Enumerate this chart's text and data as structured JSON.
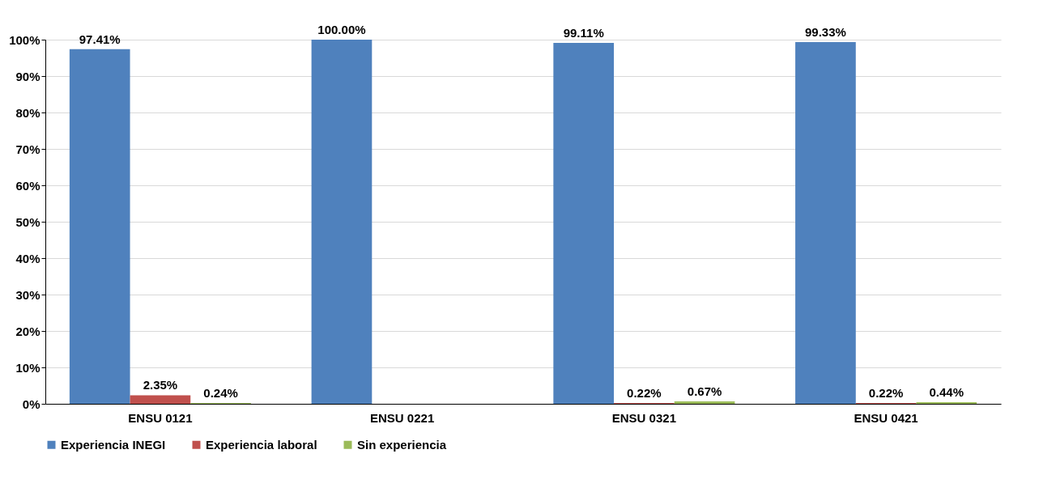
{
  "chart_data": {
    "type": "bar",
    "categories": [
      "ENSU 0121",
      "ENSU 0221",
      "ENSU 0321",
      "ENSU 0421"
    ],
    "series": [
      {
        "name": "Experiencia INEGI",
        "color": "#4f81bd",
        "values": [
          97.41,
          100.0,
          99.11,
          99.33
        ],
        "value_labels": [
          "97.41%",
          "100.00%",
          "99.11%",
          "99.33%"
        ]
      },
      {
        "name": "Experiencia laboral",
        "color": "#c0504d",
        "values": [
          2.35,
          null,
          0.22,
          0.22
        ],
        "value_labels": [
          "2.35%",
          null,
          "0.22%",
          "0.22%"
        ]
      },
      {
        "name": "Sin experiencia",
        "color": "#9bbb59",
        "values": [
          0.24,
          null,
          0.67,
          0.44
        ],
        "value_labels": [
          "0.24%",
          null,
          "0.67%",
          "0.44%"
        ]
      }
    ],
    "ylim": [
      0,
      100
    ],
    "yticks": [
      {
        "value": 0,
        "label": "0%"
      },
      {
        "value": 10,
        "label": "10%"
      },
      {
        "value": 20,
        "label": "20%"
      },
      {
        "value": 30,
        "label": "30%"
      },
      {
        "value": 40,
        "label": "40%"
      },
      {
        "value": 50,
        "label": "50%"
      },
      {
        "value": 60,
        "label": "60%"
      },
      {
        "value": 70,
        "label": "70%"
      },
      {
        "value": 80,
        "label": "80%"
      },
      {
        "value": 90,
        "label": "90%"
      },
      {
        "value": 100,
        "label": "100%"
      }
    ],
    "grid": "y",
    "legend": "bottom"
  }
}
